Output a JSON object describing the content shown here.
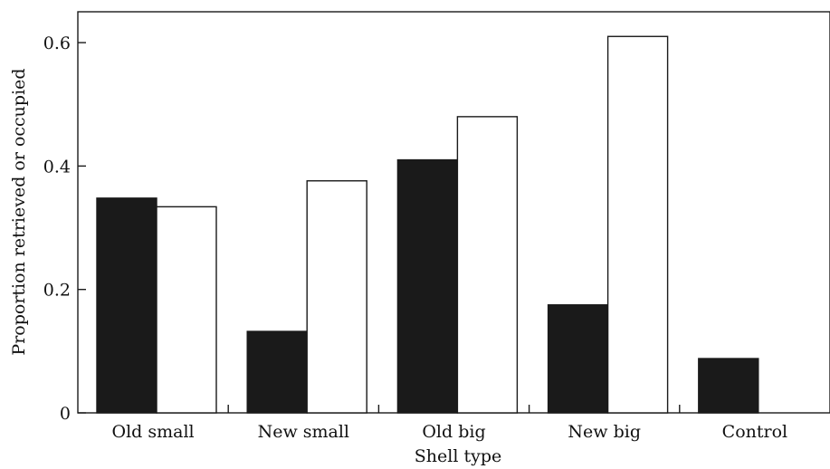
{
  "chart_data": {
    "type": "bar",
    "xlabel": "Shell type",
    "ylabel": "Proportion retrieved or occupied",
    "categories": [
      "Old small",
      "New small",
      "Old big",
      "New big",
      "Control"
    ],
    "series": [
      {
        "values": [
          0.348,
          0.132,
          0.41,
          0.175,
          0.088
        ]
      },
      {
        "values": [
          0.334,
          0.376,
          0.48,
          0.61,
          null
        ]
      }
    ],
    "ylim": [
      0,
      0.65
    ],
    "yticks": [
      0,
      0.2,
      0.4,
      0.6
    ],
    "ytick_labels": [
      "0",
      "0.2",
      "0.4",
      "0.6"
    ],
    "grid": false,
    "legend": "none",
    "colors": [
      "#1a1a1a",
      "#ffffff"
    ],
    "edge_color": "#1a1a1a"
  }
}
